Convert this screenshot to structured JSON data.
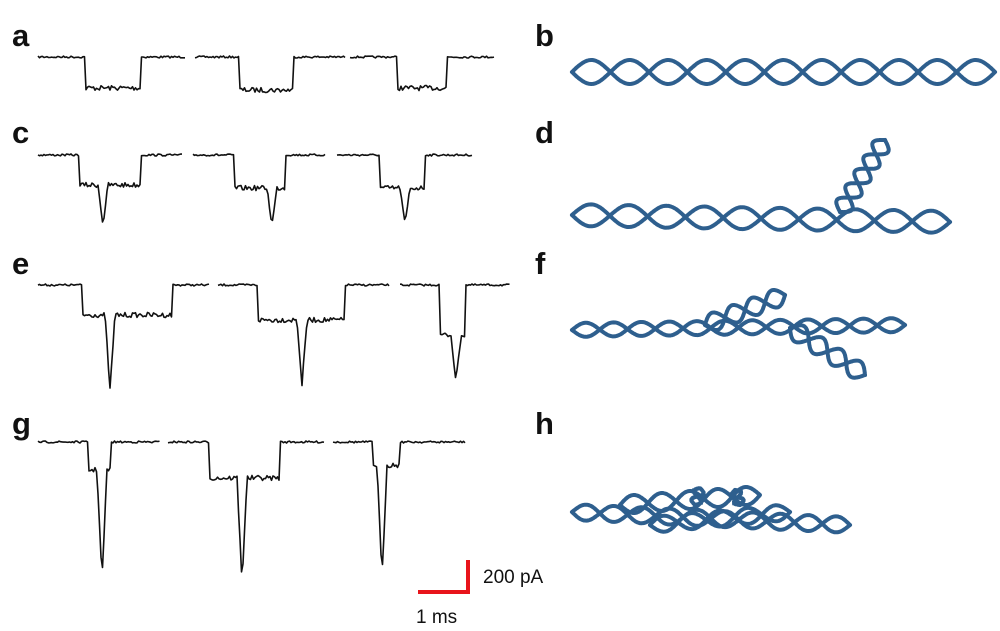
{
  "panels": [
    "a",
    "b",
    "c",
    "d",
    "e",
    "f",
    "g",
    "h"
  ],
  "scale_bar": {
    "current": "200 pA",
    "time": "1 ms"
  }
}
